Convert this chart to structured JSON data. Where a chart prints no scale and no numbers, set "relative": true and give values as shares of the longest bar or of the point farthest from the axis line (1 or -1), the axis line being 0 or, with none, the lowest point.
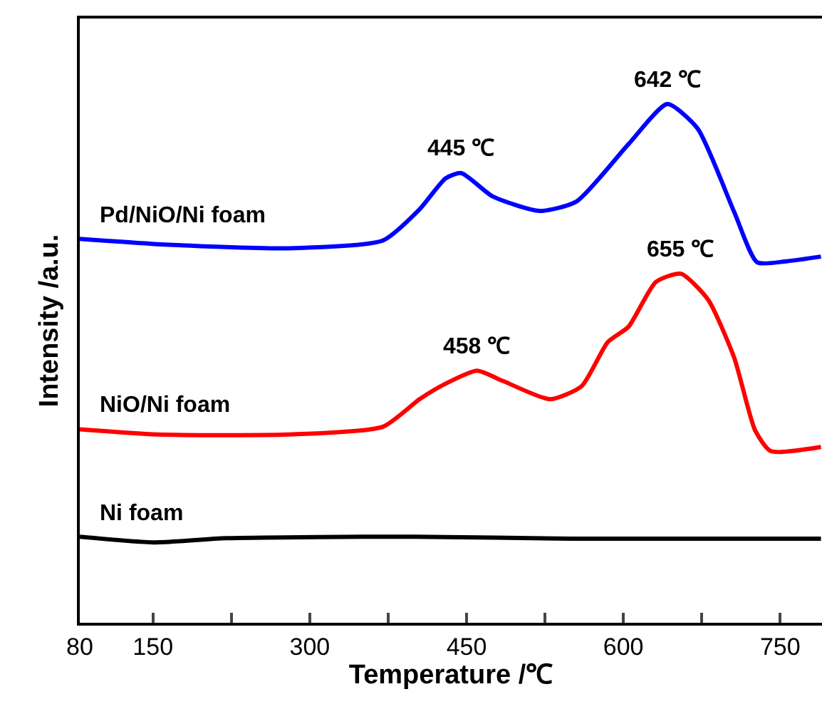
{
  "chart_data": {
    "type": "line",
    "relative": true,
    "xlabel": "Temperature /℃",
    "ylabel": "Intensity /a.u.",
    "xlim": [
      80,
      790
    ],
    "xticks": [
      80,
      150,
      {
        "value": 225,
        "label": null
      },
      300,
      {
        "value": 375,
        "label": null
      },
      450,
      {
        "value": 525,
        "label": null
      },
      600,
      {
        "value": 675,
        "label": null
      },
      750
    ],
    "marker": "none",
    "line_style": "solid",
    "series": [
      {
        "name": "Pd/NiO/Ni foam",
        "color": "#0000ff",
        "x": [
          80,
          154,
          279,
          370,
          405,
          430,
          445,
          475,
          520,
          555,
          605,
          642,
          671,
          706,
          728,
          756,
          789
        ],
        "values": [
          0.74,
          0.73,
          0.722,
          0.737,
          0.797,
          0.857,
          0.867,
          0.822,
          0.794,
          0.812,
          0.923,
          1.0,
          0.953,
          0.792,
          0.695,
          0.697,
          0.706
        ]
      },
      {
        "name": "NiO/Ni foam",
        "color": "#ff0000",
        "x": [
          80,
          154,
          279,
          370,
          405,
          430,
          460,
          485,
          530,
          560,
          585,
          605,
          631,
          655,
          681,
          706,
          726,
          741,
          789
        ],
        "values": [
          0.373,
          0.363,
          0.363,
          0.378,
          0.431,
          0.461,
          0.486,
          0.466,
          0.431,
          0.456,
          0.541,
          0.571,
          0.657,
          0.673,
          0.623,
          0.511,
          0.371,
          0.331,
          0.339
        ]
      },
      {
        "name": "Ni foam",
        "color": "#000000",
        "x": [
          80,
          152,
          220,
          400,
          550,
          789
        ],
        "values": [
          0.166,
          0.155,
          0.163,
          0.166,
          0.162,
          0.162
        ]
      }
    ],
    "annotations": [
      {
        "text": "445 ℃",
        "x": 445,
        "y": 0.867
      },
      {
        "text": "642 ℃",
        "x": 642,
        "y": 1.0
      },
      {
        "text": "458 ℃",
        "x": 460,
        "y": 0.486
      },
      {
        "text": "655 ℃",
        "x": 655,
        "y": 0.673
      }
    ]
  }
}
